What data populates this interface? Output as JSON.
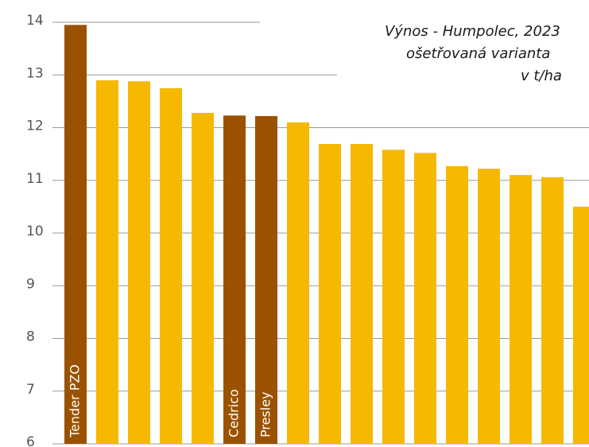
{
  "chart_data": {
    "type": "bar",
    "title": [
      "Výnos - Humpolec, 2023",
      "ošetřovaná varianta",
      "v t/ha"
    ],
    "categories": [
      "Tender PZO",
      null,
      null,
      null,
      null,
      "Cedrico",
      "Presley",
      null,
      null,
      null,
      null,
      null,
      null,
      null,
      null,
      null,
      null
    ],
    "values": [
      13.95,
      12.9,
      12.88,
      12.75,
      12.28,
      12.23,
      12.22,
      12.1,
      11.69,
      11.69,
      11.58,
      11.52,
      11.27,
      11.22,
      11.1,
      11.06,
      10.5
    ],
    "colors": [
      "#9b5200",
      "#f6b800",
      "#f6b800",
      "#f6b800",
      "#f6b800",
      "#9b5200",
      "#9b5200",
      "#f6b800",
      "#f6b800",
      "#f6b800",
      "#f6b800",
      "#f6b800",
      "#f6b800",
      "#f6b800",
      "#f6b800",
      "#f6b800",
      "#f6b800"
    ],
    "ylim": [
      6,
      14
    ],
    "yticks": [
      6,
      7,
      8,
      9,
      10,
      11,
      12,
      13,
      14
    ],
    "grid": true
  }
}
